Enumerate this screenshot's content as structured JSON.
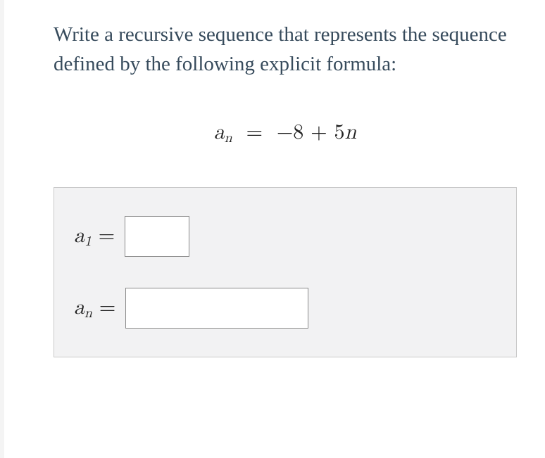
{
  "prompt_text": "Write a recursive sequence that represents the sequence defined by the following explicit formula:",
  "formula": {
    "var": "a",
    "subscript": "n",
    "equals": "=",
    "rhs_prefix": "−8 + 5",
    "rhs_var": "n"
  },
  "answer_box": {
    "background_color": "#f2f2f3",
    "border_color": "#c9c9c9",
    "rows": [
      {
        "label_var": "a",
        "label_sub": "1",
        "equals": "=",
        "input_width": "small",
        "value": ""
      },
      {
        "label_var": "a",
        "label_sub": "n",
        "equals": "=",
        "input_width": "wide",
        "value": ""
      }
    ]
  },
  "colors": {
    "prompt_text": "#374b5c",
    "math_text": "#222222",
    "field_border": "#8a8a8a",
    "field_bg": "#ffffff"
  },
  "fonts": {
    "prompt_size_pt": 22,
    "math_size_pt": 22
  }
}
